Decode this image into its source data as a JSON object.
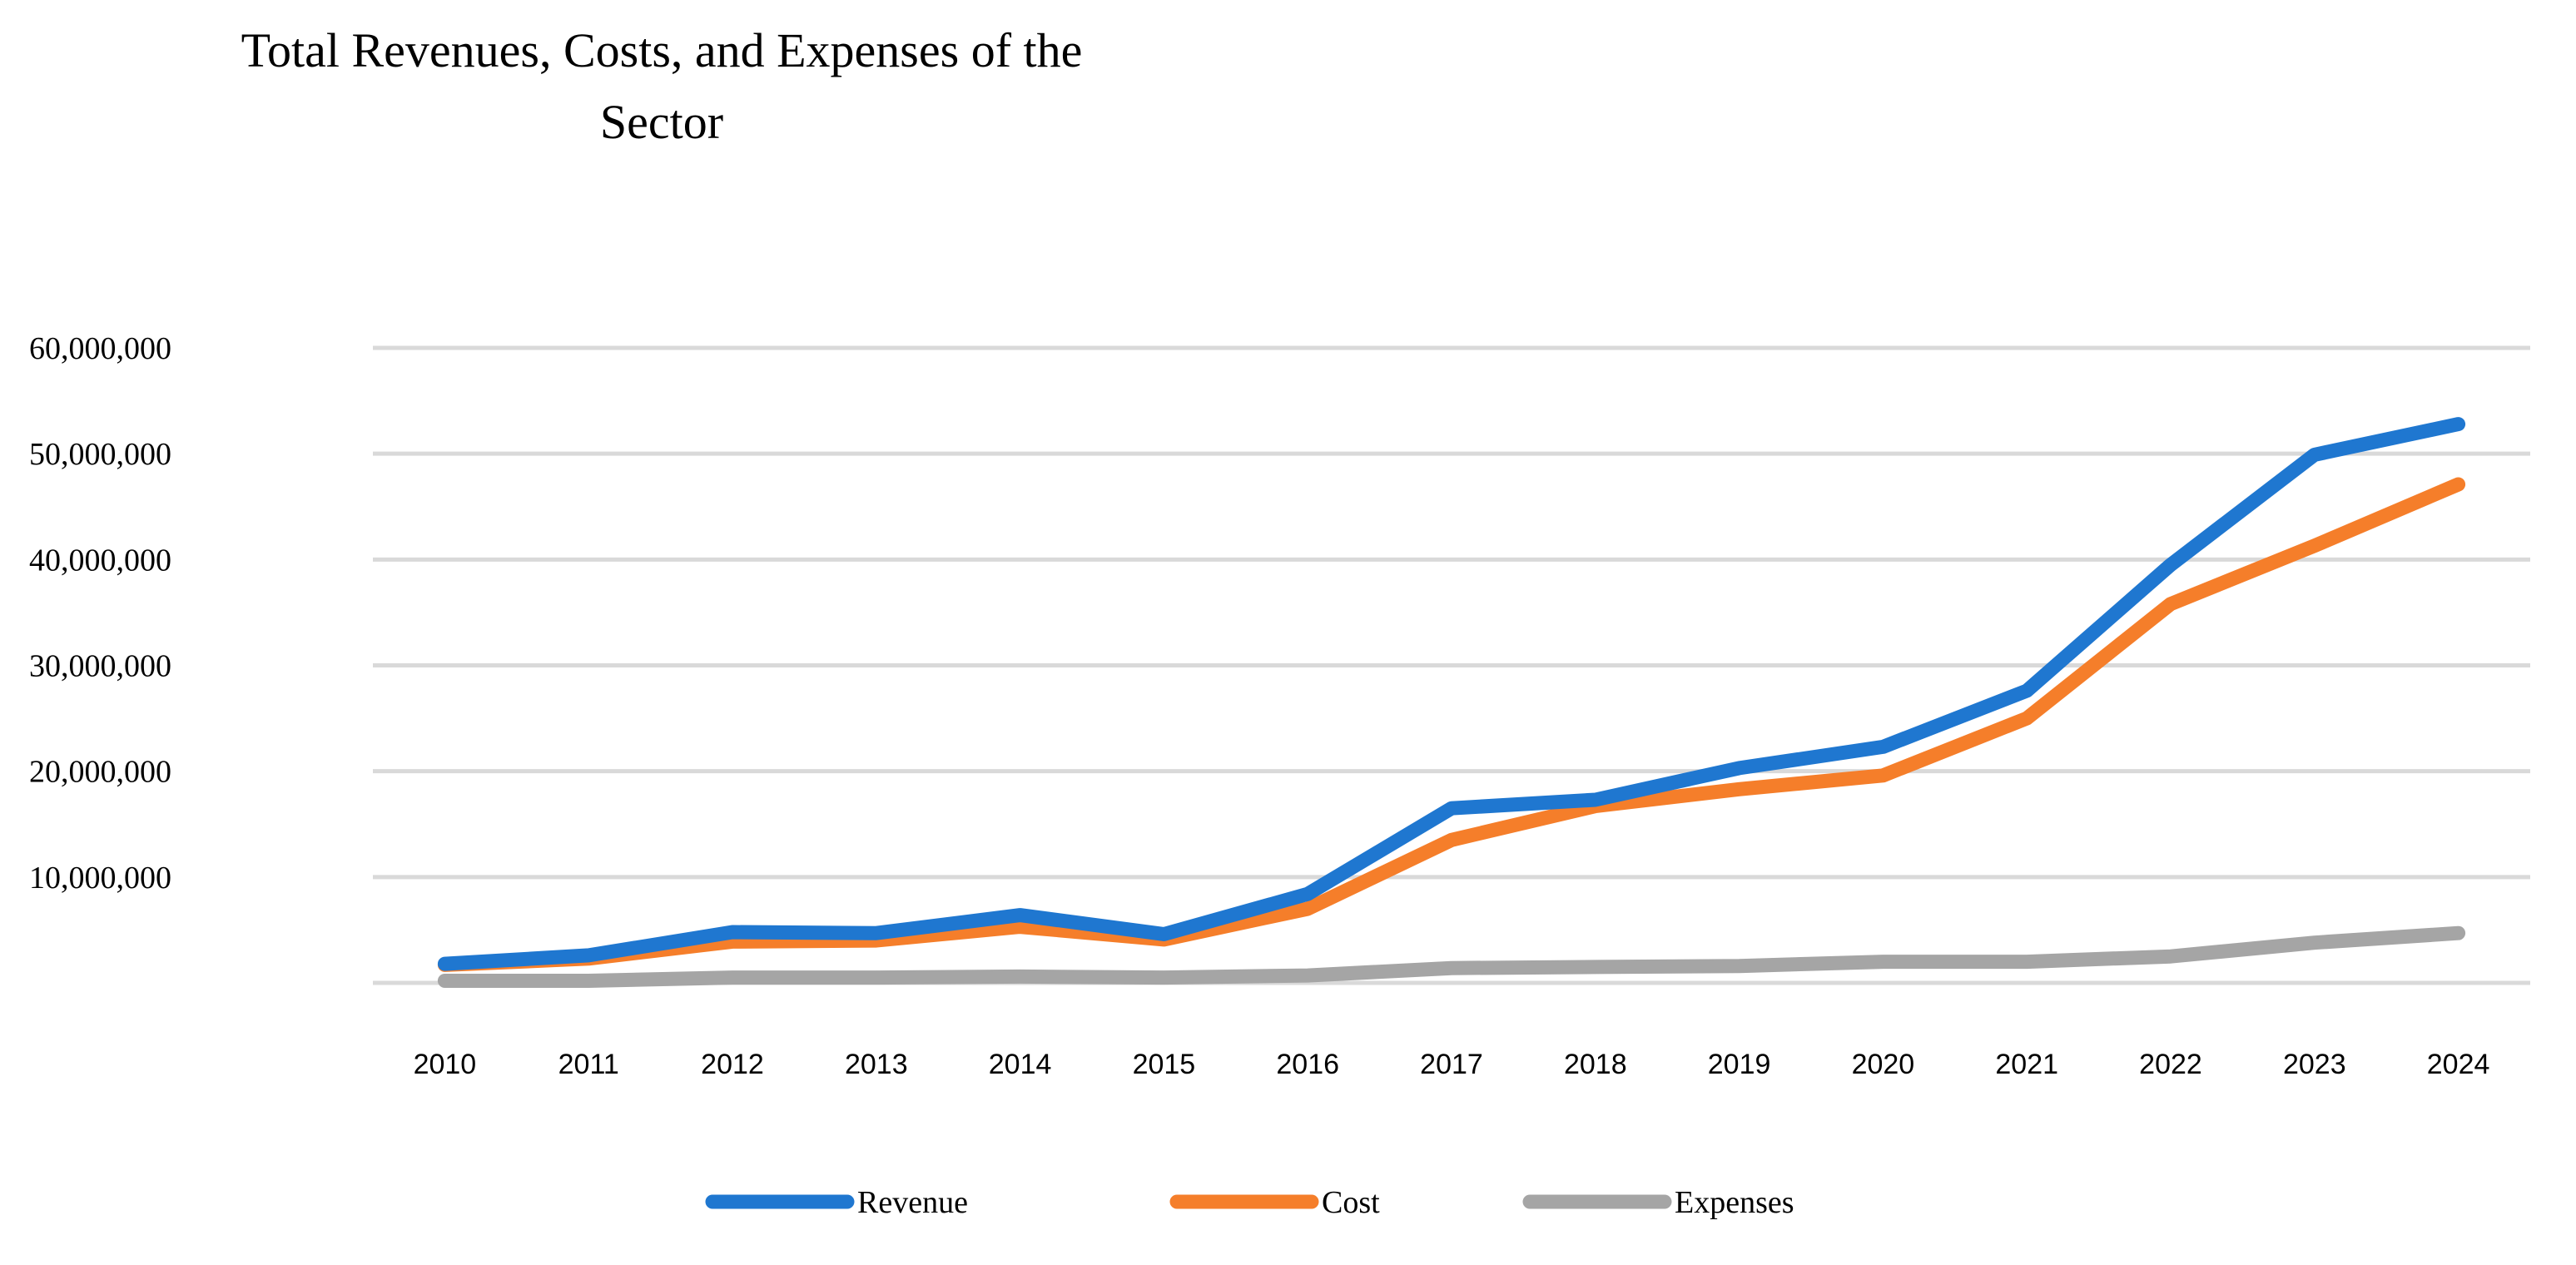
{
  "chart_data": {
    "type": "line",
    "title": "Total Revenues, Costs, and Expenses of the Sector",
    "title_lines": [
      "Total Revenues, Costs, and Expenses of the",
      "Sector"
    ],
    "xlabel": "",
    "ylabel": "",
    "categories": [
      "2010",
      "2011",
      "2012",
      "2013",
      "2014",
      "2015",
      "2016",
      "2017",
      "2018",
      "2019",
      "2020",
      "2021",
      "2022",
      "2023",
      "2024"
    ],
    "ylim": [
      0,
      60000000
    ],
    "yticks": [
      10000000,
      20000000,
      30000000,
      40000000,
      50000000,
      60000000
    ],
    "ytick_labels": [
      "10,000,000",
      "20,000,000",
      "30,000,000",
      "40,000,000",
      "50,000,000",
      "60,000,000"
    ],
    "grid": true,
    "legend_position": "bottom",
    "series": [
      {
        "name": "Revenue",
        "color": "#1F77D0",
        "values": [
          1800000,
          2600000,
          4800000,
          4700000,
          6400000,
          4600000,
          8400000,
          16500000,
          17300000,
          20300000,
          22300000,
          27600000,
          39500000,
          49900000,
          52800000
        ]
      },
      {
        "name": "Cost",
        "color": "#F57E2A",
        "values": [
          1700000,
          2300000,
          3900000,
          4000000,
          5300000,
          4100000,
          7000000,
          13500000,
          16700000,
          18300000,
          19600000,
          25000000,
          35800000,
          41300000,
          47100000
        ]
      },
      {
        "name": "Expenses",
        "color": "#A5A5A5",
        "values": [
          200000,
          200000,
          500000,
          500000,
          600000,
          500000,
          700000,
          1400000,
          1500000,
          1600000,
          2000000,
          2000000,
          2500000,
          3800000,
          4700000
        ]
      }
    ]
  }
}
